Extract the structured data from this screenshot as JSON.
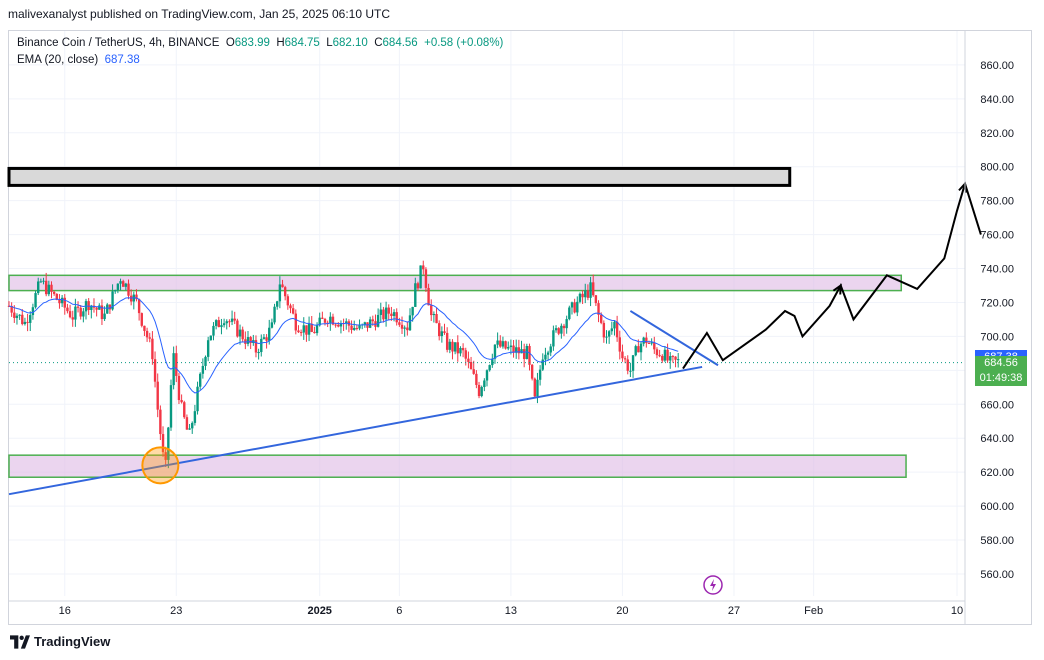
{
  "header": {
    "publisher": "malivexanalyst published on TradingView.com, Jan 25, 2025 06:10 UTC"
  },
  "legend": {
    "symbol": "Binance Coin / TetherUS, 4h, BINANCE",
    "o_label": "O",
    "o": "683.99",
    "h_label": "H",
    "h": "684.75",
    "l_label": "L",
    "l": "682.10",
    "c_label": "C",
    "c": "684.56",
    "change": "+0.58 (+0.08%)",
    "ema_label": "EMA (20, close)",
    "ema_value": "687.38"
  },
  "price_tags": {
    "ema": "687.38",
    "last": "684.56",
    "countdown": "01:49:38"
  },
  "footer": {
    "brand": "TradingView"
  },
  "colors": {
    "up": "#089981",
    "down": "#f23645",
    "ema": "#2962ff",
    "zone_fill": "#e1bee7",
    "zone_border": "#4caf50",
    "trendline": "#3366dd",
    "projection": "#000000",
    "circle": "#ff9800",
    "last_tag": "#4caf50",
    "ema_tag": "#2962ff"
  },
  "chart_data": {
    "type": "candlestick",
    "title": "Binance Coin / TetherUS, 4h, BINANCE",
    "y_ticks": [
      "560.00",
      "580.00",
      "600.00",
      "620.00",
      "640.00",
      "660.00",
      "680.00",
      "700.00",
      "720.00",
      "740.00",
      "760.00",
      "780.00",
      "800.00",
      "820.00",
      "840.00",
      "860.00"
    ],
    "ylim": [
      547,
      880
    ],
    "x_ticks": [
      "16",
      "23",
      "2025",
      "6",
      "13",
      "20",
      "27",
      "Feb",
      "10"
    ],
    "x_tick_days": [
      0,
      7,
      16,
      21,
      28,
      35,
      42,
      47,
      56
    ],
    "xlim_days": [
      -3.5,
      56.5
    ],
    "price_path": [
      [
        -3.5,
        718
      ],
      [
        -2.5,
        708
      ],
      [
        -1.5,
        732
      ],
      [
        -0.5,
        722
      ],
      [
        0.5,
        712
      ],
      [
        1.5,
        720
      ],
      [
        2.5,
        712
      ],
      [
        3.5,
        735
      ],
      [
        4.5,
        720
      ],
      [
        5.5,
        690
      ],
      [
        5.8,
        660
      ],
      [
        6.3,
        618
      ],
      [
        6.8,
        690
      ],
      [
        7.3,
        658
      ],
      [
        7.8,
        640
      ],
      [
        8.3,
        665
      ],
      [
        9.0,
        700
      ],
      [
        10.0,
        712
      ],
      [
        11.0,
        702
      ],
      [
        12.0,
        692
      ],
      [
        13.0,
        705
      ],
      [
        13.5,
        732
      ],
      [
        14.5,
        708
      ],
      [
        15.5,
        702
      ],
      [
        16.5,
        712
      ],
      [
        17.5,
        708
      ],
      [
        18.5,
        704
      ],
      [
        19.5,
        710
      ],
      [
        20.5,
        715
      ],
      [
        21.5,
        706
      ],
      [
        22.0,
        728
      ],
      [
        22.5,
        742
      ],
      [
        23.0,
        712
      ],
      [
        24.0,
        695
      ],
      [
        25.0,
        690
      ],
      [
        26.0,
        668
      ],
      [
        27.0,
        695
      ],
      [
        28.0,
        692
      ],
      [
        29.0,
        690
      ],
      [
        29.5,
        662
      ],
      [
        30.0,
        690
      ],
      [
        31.0,
        705
      ],
      [
        32.0,
        718
      ],
      [
        33.0,
        728
      ],
      [
        33.5,
        712
      ],
      [
        34.0,
        698
      ],
      [
        34.5,
        708
      ],
      [
        35.0,
        688
      ],
      [
        35.5,
        680
      ],
      [
        36.0,
        695
      ],
      [
        36.5,
        698
      ],
      [
        37.0,
        692
      ],
      [
        37.5,
        690
      ],
      [
        38.0,
        684
      ],
      [
        38.5,
        685
      ]
    ],
    "ema20_close": 687.38,
    "last_close": 684.56,
    "countdown": "01:49:38",
    "zones": [
      {
        "low": 789,
        "high": 799,
        "from_day": -3.5,
        "to_day": 45.5
      },
      {
        "low": 727,
        "high": 736,
        "from_day": -3.5,
        "to_day": 52.5
      },
      {
        "low": 617,
        "high": 630,
        "from_day": -3.5,
        "to_day": 52.8
      }
    ],
    "trendlines": [
      {
        "from": [
          -3.5,
          607
        ],
        "to": [
          40.0,
          682
        ]
      },
      {
        "from": [
          35.5,
          715
        ],
        "to": [
          41.0,
          683
        ]
      }
    ],
    "projection": [
      [
        38.8,
        681
      ],
      [
        40.3,
        702
      ],
      [
        41.3,
        686
      ],
      [
        44.0,
        704
      ],
      [
        45.2,
        715
      ],
      [
        45.8,
        712
      ],
      [
        46.3,
        700
      ],
      [
        48.0,
        718
      ],
      [
        48.7,
        730
      ],
      [
        49.5,
        710
      ],
      [
        51.6,
        736
      ],
      [
        53.5,
        728
      ],
      [
        55.2,
        746
      ],
      [
        56.0,
        774
      ],
      [
        56.5,
        790
      ],
      [
        57.5,
        760
      ]
    ],
    "circle": {
      "day": 6.0,
      "price": 624
    },
    "annotations": []
  }
}
